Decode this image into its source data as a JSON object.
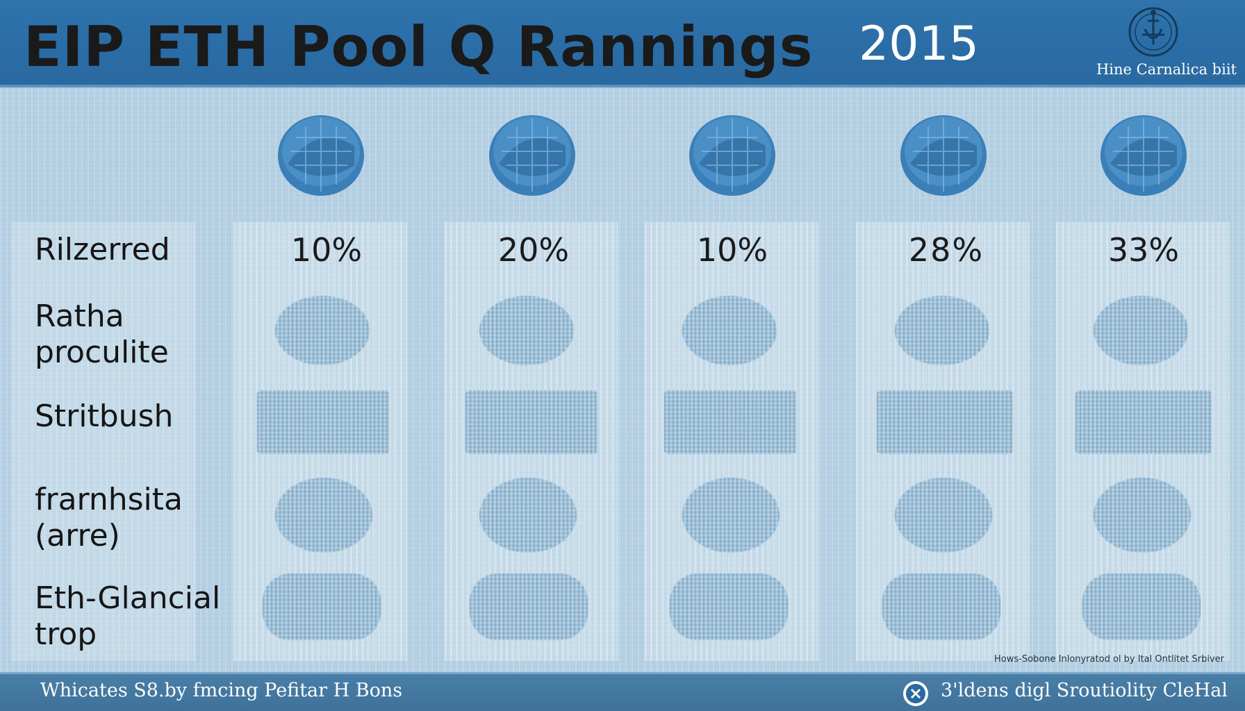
{
  "header": {
    "title": "EIP ETH Pool Q Rannings",
    "year": "2015",
    "org_name": "Hine Carnalica biit"
  },
  "columns": [
    {
      "percent": "10%"
    },
    {
      "percent": "20%"
    },
    {
      "percent": "10%"
    },
    {
      "percent": "28%"
    },
    {
      "percent": "33%"
    }
  ],
  "rows": [
    {
      "line1": "Rilzerred",
      "line2": ""
    },
    {
      "line1": "Ratha",
      "line2": "proculite"
    },
    {
      "line1": "Stritbush",
      "line2": ""
    },
    {
      "line1": "frarnhsita",
      "line2": "(arre)"
    },
    {
      "line1": "Eth-Glancial",
      "line2": "trop"
    }
  ],
  "note": "Hows-Sobone Inlonyratod ol by Ital Ontlitet Srbiver",
  "footer": {
    "left": "Whicates S8.by fmcing Pefitar H Bons",
    "right": "3'ldens digl Sroutiolity CleHal"
  },
  "colors": {
    "header_bg": "#2f74ad",
    "page_bg": "#b4d0e2",
    "coin": "#3a7fb8",
    "footer_bg": "#497ea8"
  }
}
